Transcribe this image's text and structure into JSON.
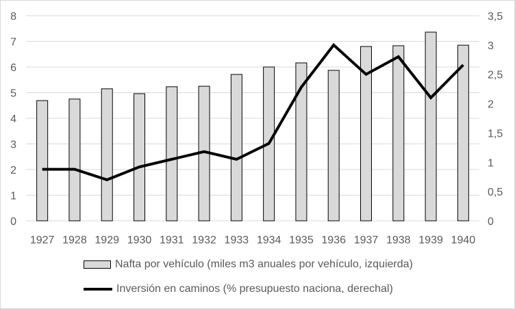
{
  "chart_data": {
    "type": "bar+line",
    "categories": [
      "1927",
      "1928",
      "1929",
      "1930",
      "1931",
      "1932",
      "1933",
      "1934",
      "1935",
      "1936",
      "1937",
      "1938",
      "1939",
      "1940"
    ],
    "series": [
      {
        "name": "Nafta por vehículo (miles m3 anuales por vehículo, izquierda)",
        "type": "bar",
        "axis": "left",
        "color": "#d9d9d9",
        "values": [
          4.69,
          4.75,
          5.15,
          4.96,
          5.23,
          5.25,
          5.71,
          6.0,
          6.16,
          5.87,
          6.8,
          6.83,
          7.36,
          6.85
        ]
      },
      {
        "name": "Inversión en caminos (% presupuesto naciona, derechal)",
        "type": "line",
        "axis": "right",
        "color": "#000000",
        "values": [
          0.88,
          0.88,
          0.7,
          0.92,
          1.05,
          1.18,
          1.05,
          1.32,
          2.28,
          3.0,
          2.5,
          2.8,
          2.1,
          2.66
        ]
      }
    ],
    "left_axis": {
      "ylim": [
        0,
        8
      ],
      "ticks": [
        "0",
        "1",
        "2",
        "3",
        "4",
        "5",
        "6",
        "7",
        "8"
      ]
    },
    "right_axis": {
      "ylim": [
        0,
        3.5
      ],
      "ticks": [
        "0",
        "0,5",
        "1",
        "1,5",
        "2",
        "2,5",
        "3",
        "3,5"
      ]
    },
    "grid": true,
    "legend_position": "bottom",
    "title": "",
    "xlabel": "",
    "ylabel": ""
  }
}
